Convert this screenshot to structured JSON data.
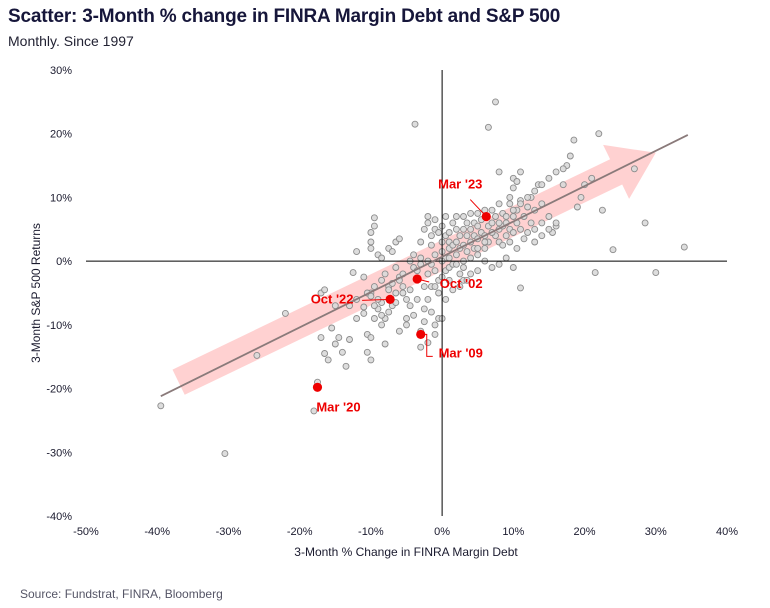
{
  "header": {
    "title": "Scatter: 3-Month % change in FINRA Margin Debt and S&P 500",
    "subtitle": "Monthly. Since 1997"
  },
  "footer": {
    "source": "Source: Fundstrat, FINRA, Bloomberg"
  },
  "colors": {
    "points_fill": "#d9d9d9",
    "points_stroke": "#8c8c8c",
    "highlight": "#ee0000",
    "trendline": "#8a7a7a",
    "arrow": "#ffc9c9",
    "axis": "#000000"
  },
  "chart_data": {
    "type": "scatter",
    "xlabel": "3-Month % Change in FINRA Margin Debt",
    "ylabel": "3-Month S&P 500 Returns",
    "xlim": [
      -50,
      40
    ],
    "ylim": [
      -40,
      30
    ],
    "x_ticks": [
      "-50%",
      "-40%",
      "-30%",
      "-20%",
      "-10%",
      "0%",
      "10%",
      "20%",
      "30%",
      "40%"
    ],
    "y_ticks": [
      "30%",
      "20%",
      "10%",
      "0%",
      "-10%",
      "-20%",
      "-30%",
      "-40%"
    ],
    "grid": false,
    "trendline": {
      "x": [
        -39.5,
        34.5
      ],
      "y": [
        -21.2,
        19.8
      ]
    },
    "arrow": {
      "from": [
        -37,
        -19
      ],
      "to": [
        30,
        17
      ]
    },
    "highlights": [
      {
        "label": "Mar '23",
        "x": 6.2,
        "y": 7.0
      },
      {
        "label": "Oct '02",
        "x": -3.5,
        "y": -2.8
      },
      {
        "label": "Oct '22",
        "x": -7.3,
        "y": -6.0
      },
      {
        "label": "Mar '09",
        "x": -3.0,
        "y": -11.5
      },
      {
        "label": "Mar '20",
        "x": -17.5,
        "y": -19.8
      }
    ],
    "points": [
      [
        -39.5,
        -22.7
      ],
      [
        -30.5,
        -30.2
      ],
      [
        -26,
        -14.8
      ],
      [
        -22,
        -8.2
      ],
      [
        -18,
        -23.5
      ],
      [
        -17.5,
        -19
      ],
      [
        -16.5,
        -14.5
      ],
      [
        -16,
        -15.5
      ],
      [
        -15.5,
        -10.5
      ],
      [
        -15,
        -13
      ],
      [
        -14.5,
        -12
      ],
      [
        -14,
        -14.3
      ],
      [
        -13.5,
        -16.5
      ],
      [
        -13,
        -12.3
      ],
      [
        -17,
        -12
      ],
      [
        -17,
        -5
      ],
      [
        -16.5,
        -4.5
      ],
      [
        -15,
        -7
      ],
      [
        -13,
        -7
      ],
      [
        -12,
        -6
      ],
      [
        -12,
        -9
      ],
      [
        -11,
        -7.2
      ],
      [
        -11,
        -8.2
      ],
      [
        -10.5,
        -11.5
      ],
      [
        -10.5,
        -14.3
      ],
      [
        -10,
        -15.5
      ],
      [
        -10,
        -5
      ],
      [
        -9.5,
        -4
      ],
      [
        -9,
        -7.5
      ],
      [
        -8.5,
        -6.5
      ],
      [
        -8.5,
        -3
      ],
      [
        -8,
        -2
      ],
      [
        -7.5,
        -4
      ],
      [
        -7,
        -3.5
      ],
      [
        -12,
        1.5
      ],
      [
        -12.5,
        -1.8
      ],
      [
        -11,
        -2.5
      ],
      [
        -10.5,
        -5
      ],
      [
        -10,
        -5.5
      ],
      [
        -9.5,
        -7
      ],
      [
        -9,
        -6
      ],
      [
        -8.5,
        -10
      ],
      [
        -8,
        -9
      ],
      [
        -7.5,
        -4.5
      ],
      [
        -7,
        -7
      ],
      [
        -6.5,
        -5
      ],
      [
        -6,
        -2.5
      ],
      [
        -9.5,
        5.5
      ],
      [
        -9.5,
        6.8
      ],
      [
        -10,
        4.5
      ],
      [
        -10,
        3
      ],
      [
        -10,
        2
      ],
      [
        -9,
        1
      ],
      [
        -8.5,
        0.5
      ],
      [
        -7.5,
        2
      ],
      [
        -7,
        1.5
      ],
      [
        -6.5,
        3
      ],
      [
        -6,
        3.5
      ],
      [
        -6.5,
        -1
      ],
      [
        -6,
        -3
      ],
      [
        -5.5,
        -4
      ],
      [
        -5.5,
        -2
      ],
      [
        -5,
        -6
      ],
      [
        -5,
        -9
      ],
      [
        -4.5,
        -7
      ],
      [
        -4.5,
        0
      ],
      [
        -4,
        1
      ],
      [
        -4,
        -1
      ],
      [
        -3.8,
        21.5
      ],
      [
        -3,
        -13.5
      ],
      [
        -3,
        -11
      ],
      [
        -3.5,
        -1.5
      ],
      [
        -3,
        0.5
      ],
      [
        -2.5,
        -9.5
      ],
      [
        -2.5,
        -4
      ],
      [
        -2,
        -6
      ],
      [
        -2,
        -2
      ],
      [
        -1.5,
        -4
      ],
      [
        -1.5,
        -0.5
      ],
      [
        -1,
        -10
      ],
      [
        -1,
        -4
      ],
      [
        -1,
        1
      ],
      [
        -0.5,
        -5
      ],
      [
        -0.5,
        -3
      ],
      [
        0,
        -2.5
      ],
      [
        0,
        3
      ],
      [
        0,
        1.5
      ],
      [
        0.5,
        -1.5
      ],
      [
        0.5,
        0.5
      ],
      [
        1,
        -3
      ],
      [
        1,
        -1
      ],
      [
        1,
        2
      ],
      [
        1.5,
        -0.5
      ],
      [
        -3,
        3
      ],
      [
        -2.5,
        5
      ],
      [
        -2,
        6
      ],
      [
        -2,
        7
      ],
      [
        -1.5,
        2.5
      ],
      [
        -1.5,
        4
      ],
      [
        -1,
        5
      ],
      [
        -1,
        6.5
      ],
      [
        -0.5,
        4.5
      ],
      [
        0,
        5.5
      ],
      [
        0.5,
        4
      ],
      [
        0.5,
        7
      ],
      [
        1,
        3
      ],
      [
        1,
        4.5
      ],
      [
        1.5,
        2.5
      ],
      [
        1.5,
        6
      ],
      [
        2,
        1
      ],
      [
        2,
        3
      ],
      [
        2,
        5
      ],
      [
        2,
        7
      ],
      [
        2.5,
        -2
      ],
      [
        2.5,
        2
      ],
      [
        2.5,
        4
      ],
      [
        3,
        0
      ],
      [
        3,
        -3
      ],
      [
        3,
        2.5
      ],
      [
        3,
        5
      ],
      [
        3,
        7
      ],
      [
        3.5,
        1.5
      ],
      [
        3.5,
        4
      ],
      [
        3.5,
        6
      ],
      [
        4,
        3
      ],
      [
        4,
        5
      ],
      [
        4,
        7.5
      ],
      [
        4.5,
        2
      ],
      [
        4.5,
        4
      ],
      [
        4.5,
        6
      ],
      [
        5,
        1
      ],
      [
        5,
        3.5
      ],
      [
        5,
        5.5
      ],
      [
        5,
        7.5
      ],
      [
        5.5,
        4.5
      ],
      [
        5.5,
        6.5
      ],
      [
        6,
        2
      ],
      [
        6,
        4
      ],
      [
        6,
        8
      ],
      [
        6.5,
        3
      ],
      [
        6.5,
        5.5
      ],
      [
        7,
        6
      ],
      [
        7,
        8
      ],
      [
        7.5,
        4
      ],
      [
        7.5,
        7
      ],
      [
        8,
        3
      ],
      [
        8,
        5
      ],
      [
        8,
        9
      ],
      [
        8.5,
        2.5
      ],
      [
        8.5,
        5.5
      ],
      [
        8.5,
        7.5
      ],
      [
        9,
        4
      ],
      [
        9,
        6
      ],
      [
        9.5,
        3
      ],
      [
        9.5,
        5
      ],
      [
        9.5,
        9
      ],
      [
        10,
        4.5
      ],
      [
        10,
        7
      ],
      [
        10,
        13
      ],
      [
        10.5,
        2
      ],
      [
        10.5,
        6
      ],
      [
        10.5,
        8
      ],
      [
        11,
        5
      ],
      [
        11,
        9.5
      ],
      [
        11.5,
        3.5
      ],
      [
        11.5,
        7
      ],
      [
        12,
        4.5
      ],
      [
        12,
        8.5
      ],
      [
        12.5,
        6
      ],
      [
        12.5,
        10
      ],
      [
        13,
        5
      ],
      [
        13,
        8
      ],
      [
        13.5,
        12
      ],
      [
        14,
        6
      ],
      [
        14,
        9
      ],
      [
        15,
        7
      ],
      [
        15.5,
        4.5
      ],
      [
        16,
        5.5
      ],
      [
        17,
        12
      ],
      [
        17.5,
        15
      ],
      [
        18,
        16.5
      ],
      [
        18.5,
        19
      ],
      [
        19,
        8.5
      ],
      [
        19.5,
        10
      ],
      [
        20,
        12
      ],
      [
        21,
        13
      ],
      [
        22,
        20
      ],
      [
        22.5,
        8
      ],
      [
        24,
        1.8
      ],
      [
        27,
        14.5
      ],
      [
        28.5,
        6
      ],
      [
        30,
        -1.8
      ],
      [
        34,
        2.2
      ],
      [
        7.5,
        25
      ],
      [
        6.5,
        21
      ],
      [
        8,
        14
      ],
      [
        9.5,
        10
      ],
      [
        10,
        11.5
      ],
      [
        10.5,
        12.5
      ],
      [
        11,
        14
      ],
      [
        11,
        -4.2
      ],
      [
        10,
        -1
      ],
      [
        9,
        0.5
      ],
      [
        8,
        -0.5
      ],
      [
        7,
        -1
      ],
      [
        6,
        0
      ],
      [
        5,
        -1.5
      ],
      [
        4,
        -2
      ],
      [
        3.5,
        -3
      ],
      [
        2.5,
        -4
      ],
      [
        1.5,
        -4.5
      ],
      [
        0.5,
        -6
      ],
      [
        -0.5,
        -9
      ],
      [
        -1.5,
        -8
      ],
      [
        -2.5,
        -7.5
      ],
      [
        -3.5,
        -6
      ],
      [
        -4.5,
        -4.5
      ],
      [
        -5.5,
        -5
      ],
      [
        -6.5,
        -6.5
      ],
      [
        -7.5,
        -8
      ],
      [
        -8.5,
        -8.5
      ],
      [
        -9.5,
        -9
      ],
      [
        -2,
        -12.8
      ],
      [
        -1,
        -11.5
      ],
      [
        0,
        -9
      ],
      [
        -4,
        -8.5
      ],
      [
        -5,
        -10
      ],
      [
        -6,
        -11
      ],
      [
        -3,
        -0.5
      ],
      [
        -2,
        0
      ],
      [
        -1,
        -1.5
      ],
      [
        0,
        0
      ],
      [
        1,
        0.5
      ],
      [
        2,
        -0.5
      ],
      [
        3,
        -1
      ],
      [
        4,
        0.5
      ],
      [
        5,
        2
      ],
      [
        6,
        3
      ],
      [
        7,
        4.5
      ],
      [
        8,
        6
      ],
      [
        9,
        7
      ],
      [
        10,
        8
      ],
      [
        11,
        9
      ],
      [
        12,
        10
      ],
      [
        13,
        11
      ],
      [
        14,
        12
      ],
      [
        15,
        13
      ],
      [
        16,
        14
      ],
      [
        17,
        14.5
      ],
      [
        21.5,
        -1.8
      ],
      [
        13,
        3
      ],
      [
        14,
        4
      ],
      [
        15,
        5
      ],
      [
        16,
        6
      ],
      [
        -8,
        -13
      ],
      [
        -10,
        -12
      ]
    ]
  }
}
